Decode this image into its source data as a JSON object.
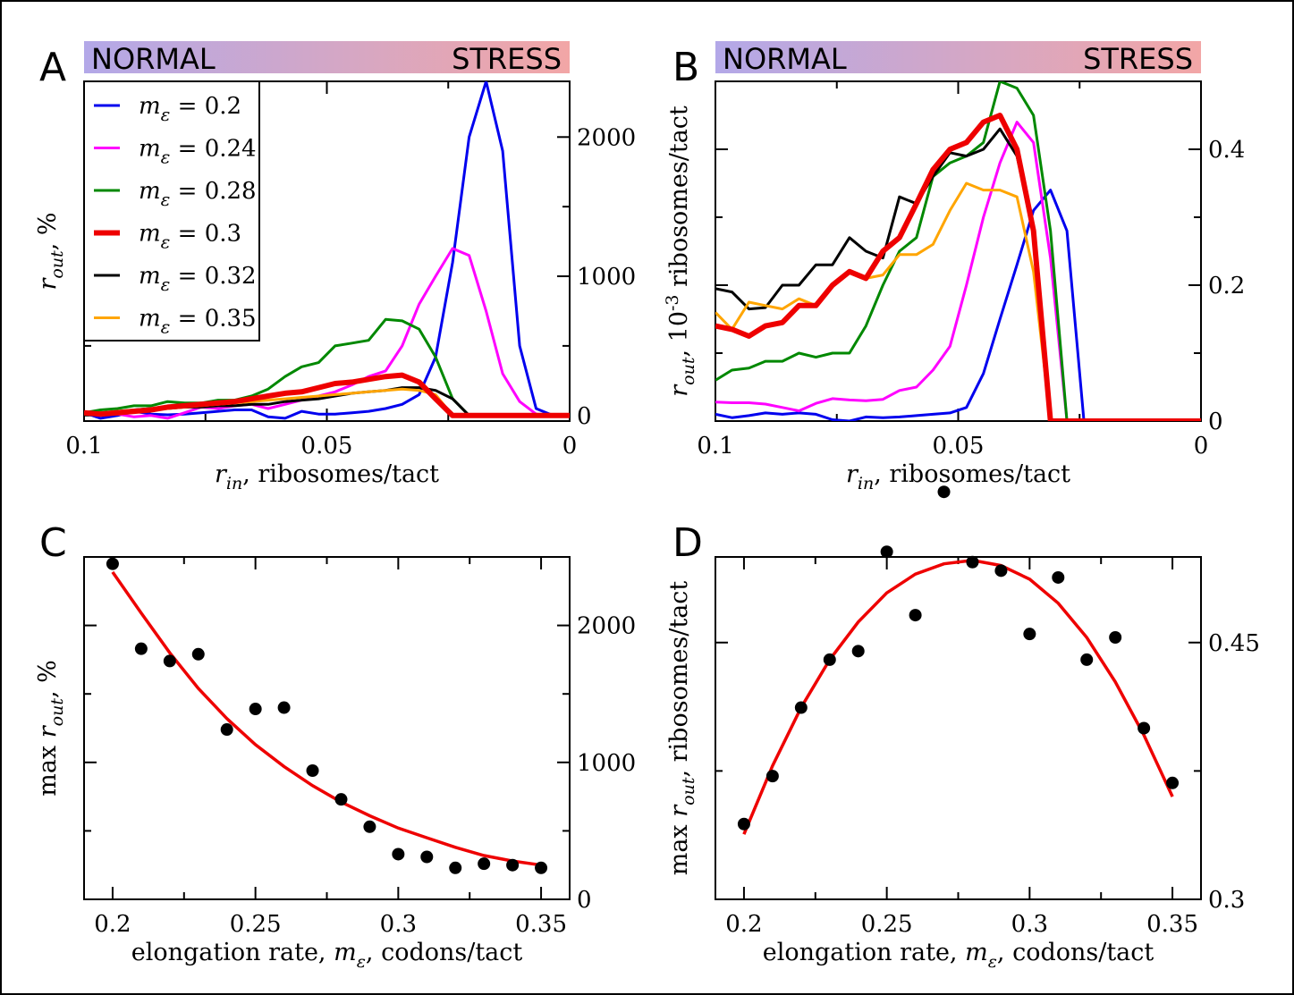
{
  "figure": {
    "panels": [
      {
        "letter": "A",
        "band_left": "NORMAL",
        "band_right": "STRESS",
        "band_colors": [
          "#b3a8e8",
          "#f2a6a6"
        ]
      },
      {
        "letter": "B",
        "band_left": "NORMAL",
        "band_right": "STRESS",
        "band_colors": [
          "#b3a8e8",
          "#f2a6a6"
        ]
      },
      {
        "letter": "C"
      },
      {
        "letter": "D"
      }
    ]
  },
  "chart_data": [
    {
      "panel": "A",
      "type": "line",
      "x_direction": "reversed",
      "xlim": [
        0.1,
        0
      ],
      "ylim": [
        -40,
        2400
      ],
      "x_ticks": [
        0.1,
        0.05,
        0
      ],
      "x_tick_labels": [
        "0.1",
        "0.05",
        "0"
      ],
      "y_ticks_right": [
        0,
        1000,
        2000
      ],
      "y_tick_labels_right": [
        "0",
        "1000",
        "2000"
      ],
      "xlabel": {
        "main": "r",
        "sub": "in",
        "rest": ", ribosomes/tact"
      },
      "ylabel": {
        "main": "r",
        "sub": "out",
        "rest": ", %"
      },
      "legend_position": "top-left",
      "x": [
        0.1,
        0.0966,
        0.0931,
        0.0897,
        0.0862,
        0.0828,
        0.0793,
        0.0759,
        0.0724,
        0.069,
        0.0655,
        0.0621,
        0.0586,
        0.0552,
        0.0517,
        0.0483,
        0.0448,
        0.0414,
        0.0379,
        0.0345,
        0.031,
        0.0276,
        0.0241,
        0.0207,
        0.0172,
        0.0138,
        0.0103,
        0.0069,
        0.0034,
        0
      ],
      "series": [
        {
          "name": "m_ε = 0.2",
          "legend_main": "m",
          "legend_sub": "ε",
          "legend_value": " = 0.2",
          "color": "#0000ee",
          "width": 3,
          "values": [
            20,
            -20,
            0,
            30,
            10,
            5,
            10,
            20,
            30,
            40,
            40,
            -10,
            -20,
            30,
            10,
            10,
            20,
            30,
            50,
            80,
            150,
            420,
            1100,
            2000,
            2400,
            1900,
            500,
            50,
            0,
            0
          ]
        },
        {
          "name": "m_ε = 0.24",
          "legend_main": "m",
          "legend_sub": "ε",
          "legend_value": " = 0.24",
          "color": "#ff00ff",
          "width": 3,
          "values": [
            20,
            10,
            10,
            -10,
            0,
            -20,
            20,
            60,
            50,
            70,
            80,
            50,
            80,
            110,
            140,
            170,
            220,
            280,
            320,
            500,
            800,
            1000,
            1200,
            1150,
            750,
            300,
            100,
            10,
            0,
            0
          ]
        },
        {
          "name": "m_ε = 0.28",
          "legend_main": "m",
          "legend_sub": "ε",
          "legend_value": " = 0.28",
          "color": "#008800",
          "width": 3,
          "values": [
            20,
            40,
            50,
            70,
            70,
            100,
            90,
            90,
            110,
            110,
            140,
            190,
            280,
            350,
            380,
            500,
            520,
            540,
            690,
            680,
            620,
            420,
            120,
            0,
            0,
            0,
            0,
            0,
            0,
            0
          ]
        },
        {
          "name": "m_ε = 0.3",
          "legend_main": "m",
          "legend_sub": "ε",
          "legend_value": " = 0.3",
          "color": "#ee0000",
          "width": 6,
          "values": [
            20,
            10,
            20,
            30,
            40,
            60,
            70,
            80,
            90,
            100,
            120,
            140,
            160,
            170,
            200,
            230,
            240,
            260,
            280,
            290,
            240,
            120,
            0,
            0,
            0,
            0,
            0,
            0,
            0,
            0
          ]
        },
        {
          "name": "m_ε = 0.32",
          "legend_main": "m",
          "legend_sub": "ε",
          "legend_value": " = 0.32",
          "color": "#000000",
          "width": 3,
          "values": [
            20,
            20,
            30,
            40,
            50,
            50,
            60,
            60,
            70,
            70,
            80,
            80,
            100,
            110,
            120,
            140,
            160,
            170,
            180,
            200,
            200,
            180,
            120,
            0,
            0,
            0,
            0,
            0,
            0,
            0
          ]
        },
        {
          "name": "m_ε = 0.35",
          "legend_main": "m",
          "legend_sub": "ε",
          "legend_value": " = 0.35",
          "color": "#ffa500",
          "width": 3,
          "values": [
            20,
            20,
            30,
            40,
            40,
            50,
            60,
            70,
            80,
            90,
            100,
            110,
            120,
            130,
            140,
            150,
            160,
            170,
            180,
            190,
            180,
            150,
            0,
            0,
            0,
            0,
            0,
            0,
            0,
            0
          ]
        }
      ]
    },
    {
      "panel": "B",
      "type": "line",
      "x_direction": "reversed",
      "xlim": [
        0.1,
        0
      ],
      "ylim": [
        0,
        0.5
      ],
      "x_ticks": [
        0.1,
        0.05,
        0
      ],
      "x_tick_labels": [
        "0.1",
        "0.05",
        "0"
      ],
      "y_ticks_right": [
        0,
        0.2,
        0.4
      ],
      "y_tick_labels_right": [
        "0",
        "0.2",
        "0.4"
      ],
      "xlabel": {
        "main": "r",
        "sub": "in",
        "rest": ", ribosomes/tact"
      },
      "ylabel": {
        "main": "r",
        "sub": "out",
        "rest": ", 10",
        "sup": "-3",
        "rest2": " ribosomes/tact"
      },
      "x": [
        0.1,
        0.0966,
        0.0931,
        0.0897,
        0.0862,
        0.0828,
        0.0793,
        0.0759,
        0.0724,
        0.069,
        0.0655,
        0.0621,
        0.0586,
        0.0552,
        0.0517,
        0.0483,
        0.0448,
        0.0414,
        0.0379,
        0.0345,
        0.031,
        0.0276,
        0.0241,
        0.0207,
        0.0172,
        0.0138,
        0.0103,
        0.0069,
        0.0034,
        0
      ],
      "series": [
        {
          "name": "m_ε = 0.2",
          "color": "#0000ee",
          "width": 3,
          "values": [
            0.01,
            0.005,
            0.008,
            0.012,
            0.01,
            0.012,
            0.01,
            0.002,
            0,
            0.006,
            0.005,
            0.006,
            0.008,
            0.01,
            0.012,
            0.02,
            0.07,
            0.15,
            0.23,
            0.31,
            0.34,
            0.28,
            0.0,
            0.0,
            0.0,
            0.0,
            0.0,
            0.0,
            0.0,
            0
          ]
        },
        {
          "name": "m_ε = 0.24",
          "color": "#ff00ff",
          "width": 3,
          "values": [
            0.028,
            0.027,
            0.027,
            0.025,
            0.02,
            0.015,
            0.026,
            0.033,
            0.031,
            0.03,
            0.032,
            0.045,
            0.05,
            0.075,
            0.11,
            0.2,
            0.3,
            0.38,
            0.44,
            0.41,
            0.24,
            0.0,
            0.0,
            0.0,
            0.0,
            0.0,
            0.0,
            0.0,
            0.0,
            0
          ]
        },
        {
          "name": "m_ε = 0.28",
          "color": "#008800",
          "width": 3,
          "values": [
            0.06,
            0.075,
            0.078,
            0.088,
            0.088,
            0.1,
            0.094,
            0.1,
            0.1,
            0.14,
            0.2,
            0.25,
            0.27,
            0.36,
            0.38,
            0.39,
            0.41,
            0.5,
            0.49,
            0.45,
            0.28,
            0.0,
            0.0,
            0.0,
            0.0,
            0.0,
            0.0,
            0.0,
            0.0,
            0
          ]
        },
        {
          "name": "m_ε = 0.3",
          "color": "#ee0000",
          "width": 6,
          "values": [
            0.14,
            0.135,
            0.125,
            0.14,
            0.145,
            0.17,
            0.17,
            0.2,
            0.22,
            0.21,
            0.25,
            0.27,
            0.32,
            0.37,
            0.4,
            0.41,
            0.44,
            0.45,
            0.4,
            0.28,
            0.0,
            0.0,
            0.0,
            0.0,
            0.0,
            0.0,
            0.0,
            0.0,
            0.0,
            0
          ]
        },
        {
          "name": "m_ε = 0.32",
          "color": "#000000",
          "width": 3,
          "values": [
            0.195,
            0.19,
            0.165,
            0.167,
            0.2,
            0.2,
            0.23,
            0.23,
            0.27,
            0.25,
            0.24,
            0.33,
            0.32,
            0.36,
            0.395,
            0.39,
            0.4,
            0.43,
            0.39,
            0.28,
            0.0,
            0.0,
            0.0,
            0.0,
            0.0,
            0.0,
            0.0,
            0.0,
            0.0,
            0
          ]
        },
        {
          "name": "m_ε = 0.35",
          "color": "#ffa500",
          "width": 3,
          "values": [
            0.16,
            0.135,
            0.175,
            0.17,
            0.165,
            0.18,
            0.17,
            0.2,
            0.22,
            0.21,
            0.215,
            0.245,
            0.245,
            0.26,
            0.31,
            0.35,
            0.34,
            0.34,
            0.33,
            0.22,
            0.0,
            0.0,
            0.0,
            0.0,
            0.0,
            0.0,
            0.0,
            0.0,
            0.0,
            0
          ]
        }
      ]
    },
    {
      "panel": "C",
      "type": "scatter",
      "xlim": [
        0.19,
        0.36
      ],
      "ylim": [
        0,
        2500
      ],
      "x_ticks": [
        0.2,
        0.25,
        0.3,
        0.35
      ],
      "x_tick_labels": [
        "0.2",
        "0.25",
        "0.3",
        "0.35"
      ],
      "y_ticks_right": [
        0,
        1000,
        2000
      ],
      "y_tick_labels_right": [
        "0",
        "1000",
        "2000"
      ],
      "xlabel": {
        "pre": "elongation rate, ",
        "main": "m",
        "sub": "ε",
        "rest": ", codons/tact"
      },
      "ylabel": {
        "pre": "max ",
        "main": "r",
        "sub": "out",
        "rest": ", %"
      },
      "points": {
        "x": [
          0.2,
          0.21,
          0.22,
          0.23,
          0.24,
          0.25,
          0.26,
          0.27,
          0.28,
          0.29,
          0.3,
          0.31,
          0.32,
          0.33,
          0.34,
          0.35
        ],
        "y": [
          2450,
          1830,
          1740,
          1790,
          1240,
          1390,
          1400,
          940,
          730,
          530,
          330,
          310,
          230,
          260,
          250,
          230
        ]
      },
      "fit": {
        "color": "#ee0000",
        "x": [
          0.2,
          0.21,
          0.22,
          0.23,
          0.24,
          0.25,
          0.26,
          0.27,
          0.28,
          0.29,
          0.3,
          0.31,
          0.32,
          0.33,
          0.34,
          0.35
        ],
        "y": [
          2390,
          2090,
          1800,
          1540,
          1320,
          1130,
          970,
          830,
          710,
          610,
          520,
          450,
          380,
          320,
          280,
          250
        ]
      }
    },
    {
      "panel": "D",
      "type": "scatter",
      "xlim": [
        0.19,
        0.36
      ],
      "ylim": [
        0.3,
        0.5
      ],
      "x_ticks": [
        0.2,
        0.25,
        0.3,
        0.35
      ],
      "x_tick_labels": [
        "0.2",
        "0.25",
        "0.3",
        "0.35"
      ],
      "y_ticks_right": [
        0.3,
        0.45
      ],
      "y_tick_labels_right": [
        "0.3",
        "0.45"
      ],
      "xlabel": {
        "pre": "elongation rate, ",
        "main": "m",
        "sub": "ε",
        "rest": ", codons/tact"
      },
      "ylabel": {
        "pre": "max ",
        "main": "r",
        "sub": "out",
        "rest": ", ribosomes/tact"
      },
      "points": {
        "x": [
          0.2,
          0.21,
          0.22,
          0.23,
          0.24,
          0.25,
          0.26,
          0.27,
          0.28,
          0.29,
          0.3,
          0.31,
          0.32,
          0.33,
          0.34,
          0.35
        ],
        "y": [
          0.344,
          0.372,
          0.412,
          0.44,
          0.445,
          0.503,
          0.466,
          0.538,
          0.497,
          0.492,
          0.455,
          0.488,
          0.44,
          0.453,
          0.4,
          0.368
        ]
      },
      "fit": {
        "color": "#ee0000",
        "x": [
          0.2,
          0.21,
          0.22,
          0.23,
          0.24,
          0.25,
          0.26,
          0.27,
          0.28,
          0.29,
          0.3,
          0.31,
          0.32,
          0.33,
          0.34,
          0.35
        ],
        "y": [
          0.338,
          0.378,
          0.412,
          0.44,
          0.462,
          0.479,
          0.49,
          0.496,
          0.498,
          0.495,
          0.487,
          0.473,
          0.453,
          0.427,
          0.396,
          0.36
        ]
      }
    }
  ]
}
